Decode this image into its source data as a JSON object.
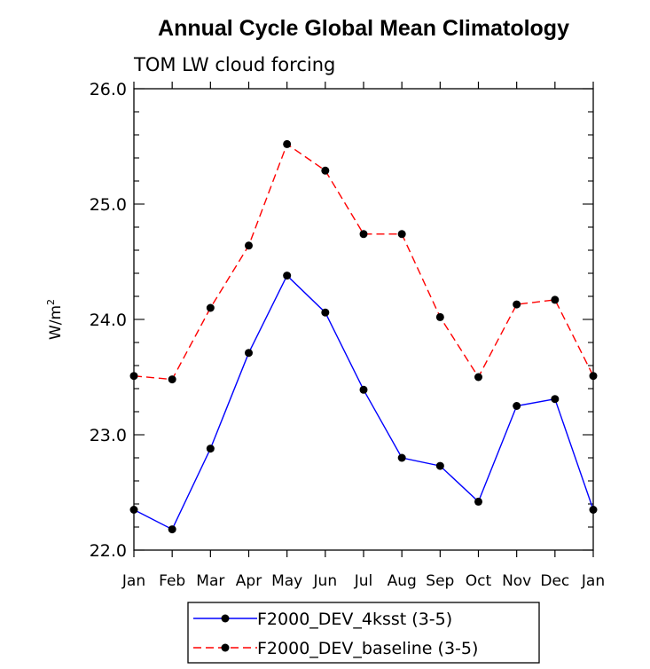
{
  "chart_data": {
    "type": "line",
    "title": "Annual Cycle Global Mean Climatology",
    "subtitle": "TOM LW cloud forcing",
    "ylabel_base": "W/m",
    "ylabel_sup": "2",
    "xlabel": "",
    "categories": [
      "Jan",
      "Feb",
      "Mar",
      "Apr",
      "May",
      "Jun",
      "Jul",
      "Aug",
      "Sep",
      "Oct",
      "Nov",
      "Dec",
      "Jan"
    ],
    "ylim": [
      22.0,
      26.0
    ],
    "yticks": [
      22.0,
      23.0,
      24.0,
      25.0,
      26.0
    ],
    "ytick_labels": [
      "22.0",
      "23.0",
      "24.0",
      "25.0",
      "26.0"
    ],
    "series": [
      {
        "name": "F2000_DEV_4ksst (3-5)",
        "color": "#0000ff",
        "dash": "solid",
        "values": [
          22.35,
          22.18,
          22.88,
          23.71,
          24.38,
          24.06,
          23.39,
          22.8,
          22.73,
          22.42,
          23.25,
          23.31,
          22.35
        ]
      },
      {
        "name": "F2000_DEV_baseline (3-5)",
        "color": "#ff0000",
        "dash": "dashed",
        "values": [
          23.51,
          23.48,
          24.1,
          24.64,
          25.52,
          25.29,
          24.74,
          24.74,
          24.02,
          23.5,
          24.13,
          24.17,
          23.51
        ]
      }
    ],
    "legend": [
      "F2000_DEV_4ksst (3-5)",
      "F2000_DEV_baseline (3-5)"
    ],
    "legend_position": "bottom",
    "grid": false
  }
}
